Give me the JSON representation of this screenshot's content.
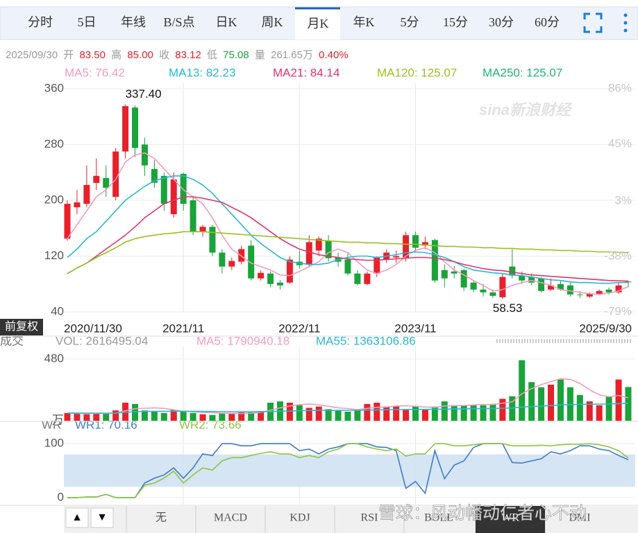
{
  "tabs": [
    "分时",
    "5日",
    "年线",
    "B/S点",
    "日K",
    "周K",
    "月K",
    "年K",
    "5分",
    "15分",
    "30分",
    "60分"
  ],
  "info": {
    "date": "2025/09/30",
    "open_label": "开",
    "open": "83.50",
    "high_label": "高",
    "high": "85.00",
    "close_label": "收",
    "close": "83.12",
    "low_label": "低",
    "low": "75.08",
    "volume_label": "量",
    "volume": "261.65万",
    "change": "0.40%"
  },
  "watermark": "sina新浪财经",
  "adjust": "前复权",
  "indicator_tabs": [
    "无",
    "MACD",
    "KDJ",
    "RSI",
    "BOLL",
    "WR",
    "DMI"
  ],
  "overlay": "雪球：风动幡动仁者心不动",
  "chart_data": [
    {
      "type": "candlestick",
      "categories": [
        "2020/11/30",
        null,
        null,
        null,
        null,
        null,
        null,
        null,
        null,
        null,
        null,
        null,
        "2021/11",
        null,
        null,
        null,
        null,
        null,
        null,
        null,
        null,
        null,
        null,
        null,
        "2022/11",
        null,
        null,
        null,
        null,
        null,
        null,
        null,
        null,
        null,
        null,
        null,
        "2023/11",
        null,
        null,
        null,
        null,
        null,
        null,
        null,
        null,
        null,
        null,
        null,
        null,
        null,
        null,
        null,
        null,
        null,
        null,
        null,
        null,
        null,
        "2025/9/30"
      ],
      "open": [
        145,
        190,
        195,
        225,
        232,
        205,
        270,
        333,
        280,
        245,
        235,
        180,
        238,
        200,
        155,
        162,
        125,
        105,
        112,
        135,
        88,
        95,
        82,
        82,
        112,
        108,
        128,
        142,
        118,
        115,
        95,
        80,
        95,
        115,
        118,
        118,
        150,
        135,
        143,
        100,
        98,
        100,
        82,
        72,
        68,
        61,
        105,
        92,
        90,
        88,
        72,
        80,
        78,
        65,
        62,
        66,
        72,
        68,
        83.5
      ],
      "high": [
        200,
        215,
        250,
        260,
        250,
        275,
        337.4,
        336,
        290,
        258,
        240,
        240,
        240,
        205,
        165,
        165,
        130,
        118,
        135,
        143,
        100,
        98,
        86,
        120,
        128,
        150,
        148,
        150,
        125,
        125,
        100,
        98,
        120,
        130,
        128,
        155,
        155,
        148,
        145,
        108,
        106,
        102,
        85,
        80,
        72,
        95,
        130,
        98,
        95,
        90,
        88,
        85,
        82,
        70,
        68,
        72,
        75,
        82,
        85
      ],
      "low": [
        142,
        180,
        190,
        215,
        205,
        200,
        260,
        262,
        235,
        218,
        185,
        175,
        185,
        150,
        148,
        120,
        95,
        100,
        108,
        85,
        85,
        75,
        72,
        80,
        102,
        104,
        120,
        112,
        105,
        92,
        78,
        78,
        90,
        110,
        110,
        112,
        125,
        130,
        82,
        75,
        88,
        70,
        68,
        62,
        60,
        58.53,
        88,
        80,
        78,
        68,
        70,
        70,
        62,
        60,
        60,
        64,
        65,
        66,
        75.08
      ],
      "close": [
        195,
        197,
        222,
        235,
        218,
        270,
        335,
        275,
        250,
        225,
        195,
        230,
        195,
        155,
        162,
        125,
        105,
        113,
        130,
        88,
        96,
        80,
        78,
        115,
        107,
        140,
        145,
        117,
        112,
        95,
        80,
        95,
        118,
        125,
        120,
        150,
        132,
        140,
        85,
        88,
        95,
        75,
        72,
        68,
        63,
        90,
        92,
        85,
        82,
        70,
        78,
        72,
        65,
        64,
        66,
        70,
        68,
        78,
        83.12
      ],
      "up_color": "#e6212a",
      "down_color": "#1aa33a",
      "high_label": "337.40",
      "low_label": "58.53",
      "series": [
        {
          "name": "MA5: 76.42",
          "color": "#f29bbb",
          "values": [
            145,
            165,
            185,
            205,
            215,
            230,
            255,
            265,
            268,
            260,
            245,
            230,
            215,
            205,
            195,
            175,
            150,
            130,
            120,
            110,
            105,
            100,
            93,
            92,
            98,
            105,
            112,
            125,
            130,
            125,
            112,
            100,
            95,
            100,
            108,
            120,
            128,
            132,
            125,
            112,
            100,
            93,
            85,
            78,
            70,
            72,
            78,
            82,
            85,
            82,
            78,
            72,
            70,
            68,
            66,
            65,
            67,
            70,
            76.42
          ]
        },
        {
          "name": "MA13: 82.23",
          "color": "#27b8d6",
          "values": [
            118,
            130,
            145,
            155,
            170,
            185,
            200,
            210,
            220,
            228,
            232,
            235,
            235,
            230,
            222,
            210,
            195,
            180,
            165,
            150,
            138,
            128,
            118,
            112,
            110,
            108,
            108,
            110,
            115,
            118,
            120,
            120,
            118,
            120,
            122,
            125,
            126,
            125,
            122,
            118,
            112,
            105,
            100,
            98,
            96,
            95,
            93,
            92,
            90,
            88,
            86,
            85,
            83,
            82,
            82,
            81,
            81,
            82,
            82.23
          ]
        },
        {
          "name": "MA21: 84.14",
          "color": "#e0336e",
          "values": [
            95,
            103,
            110,
            120,
            130,
            140,
            150,
            162,
            175,
            185,
            195,
            200,
            205,
            205,
            203,
            200,
            197,
            190,
            183,
            175,
            165,
            155,
            145,
            137,
            130,
            126,
            122,
            120,
            118,
            116,
            115,
            114,
            114,
            115,
            116,
            117,
            118,
            118,
            117,
            115,
            112,
            108,
            105,
            102,
            100,
            99,
            97,
            95,
            93,
            92,
            91,
            90,
            89,
            88,
            87,
            86,
            85,
            84.5,
            84.14
          ]
        },
        {
          "name": "MA120: 125.07",
          "color": "#9cbf22",
          "values": [
            95,
            103,
            110,
            118,
            125,
            132,
            140,
            145,
            148,
            150,
            152,
            153,
            155,
            155,
            155,
            154,
            153,
            152,
            151,
            150,
            149,
            148,
            147,
            146,
            145,
            144,
            143,
            142,
            141,
            140,
            140,
            139,
            139,
            138,
            138,
            137,
            137,
            136,
            135,
            134,
            134,
            133,
            133,
            132,
            132,
            131,
            131,
            130,
            130,
            129,
            129,
            128,
            128,
            127,
            127,
            126,
            126,
            125.5,
            125.07
          ]
        },
        {
          "name": "MA250: 125.07",
          "color": "#22b573"
        }
      ],
      "ylim": [
        40,
        360
      ],
      "yticks": [
        40,
        120,
        200,
        280,
        360
      ],
      "y2lim": [
        -79,
        86
      ],
      "y2ticks": [
        {
          "value": 86,
          "label": "86%"
        },
        {
          "value": 45,
          "label": "45%"
        },
        {
          "value": 3,
          "label": "3%"
        },
        {
          "value": -38,
          "label": "-38%"
        },
        {
          "value": -79,
          "label": "-79%"
        }
      ],
      "grid": true
    },
    {
      "type": "bar",
      "label": "成交",
      "series": [
        {
          "name": "VOL: 2616495.04",
          "color": "#999999",
          "values": [
            60,
            55,
            50,
            60,
            55,
            80,
            140,
            130,
            80,
            70,
            60,
            85,
            70,
            60,
            50,
            45,
            60,
            55,
            70,
            65,
            75,
            140,
            150,
            140,
            120,
            100,
            110,
            90,
            80,
            70,
            80,
            130,
            140,
            110,
            110,
            90,
            110,
            90,
            110,
            150,
            120,
            120,
            120,
            120,
            130,
            170,
            190,
            470,
            300,
            260,
            280,
            320,
            260,
            200,
            150,
            120,
            190,
            320,
            262
          ]
        },
        {
          "name": "MA5: 1790940.18",
          "color": "#f29bbb",
          "values": [
            60,
            57,
            55,
            56,
            56,
            60,
            77,
            93,
            97,
            100,
            96,
            85,
            73,
            69,
            65,
            62,
            58,
            56,
            56,
            58,
            65,
            81,
            100,
            114,
            125,
            130,
            124,
            112,
            100,
            94,
            86,
            96,
            104,
            106,
            114,
            116,
            112,
            106,
            104,
            114,
            116,
            118,
            122,
            126,
            126,
            136,
            146,
            210,
            250,
            280,
            304,
            326,
            322,
            290,
            240,
            202,
            186,
            196,
            179
          ]
        },
        {
          "name": "MA55: 1363106.86",
          "color": "#27b8d6",
          "values": [
            60,
            60,
            59,
            59,
            59,
            60,
            65,
            70,
            72,
            73,
            73,
            74,
            74,
            73,
            72,
            71,
            70,
            69,
            69,
            69,
            69,
            71,
            74,
            76,
            78,
            79,
            80,
            81,
            81,
            81,
            81,
            83,
            84,
            85,
            86,
            86,
            87,
            88,
            89,
            90,
            91,
            92,
            93,
            94,
            95,
            97,
            99,
            106,
            110,
            114,
            118,
            122,
            125,
            127,
            128,
            129,
            130,
            133,
            136
          ]
        }
      ],
      "ylim": [
        0,
        533
      ],
      "yticks": [
        {
          "value": 0,
          "label": "万"
        },
        480
      ],
      "grid": true
    },
    {
      "type": "line",
      "label": "WR",
      "band": [
        20,
        80
      ],
      "band_color": "#cfe0f2",
      "series": [
        {
          "name": "WR1: 70.16",
          "color": "#3d7cc9",
          "values": [
            0,
            0,
            1,
            1,
            6,
            0,
            0,
            0,
            27,
            36,
            42,
            55,
            36,
            55,
            81,
            78,
            100,
            100,
            96,
            96,
            100,
            100,
            100,
            100,
            87,
            90,
            81,
            90,
            94,
            100,
            100,
            100,
            94,
            93,
            87,
            17,
            30,
            8,
            87,
            35,
            60,
            68,
            93,
            100,
            100,
            100,
            65,
            64,
            68,
            72,
            85,
            81,
            87,
            96,
            96,
            90,
            87,
            78,
            70.16
          ]
        },
        {
          "name": "WR2: 73.66",
          "color": "#8cc63f",
          "values": [
            0,
            0,
            1,
            1,
            6,
            0,
            0,
            0,
            23,
            27,
            36,
            49,
            27,
            42,
            55,
            51,
            68,
            74,
            74,
            78,
            82,
            85,
            81,
            81,
            74,
            78,
            74,
            85,
            90,
            100,
            100,
            94,
            90,
            87,
            90,
            77,
            81,
            81,
            100,
            100,
            96,
            96,
            98,
            100,
            100,
            100,
            96,
            96,
            96,
            97,
            96,
            98,
            99,
            99,
            100,
            98,
            94,
            87,
            73.66
          ]
        }
      ],
      "ylim": [
        -13,
        113
      ],
      "yticks": [
        0,
        100
      ],
      "grid": true
    }
  ]
}
